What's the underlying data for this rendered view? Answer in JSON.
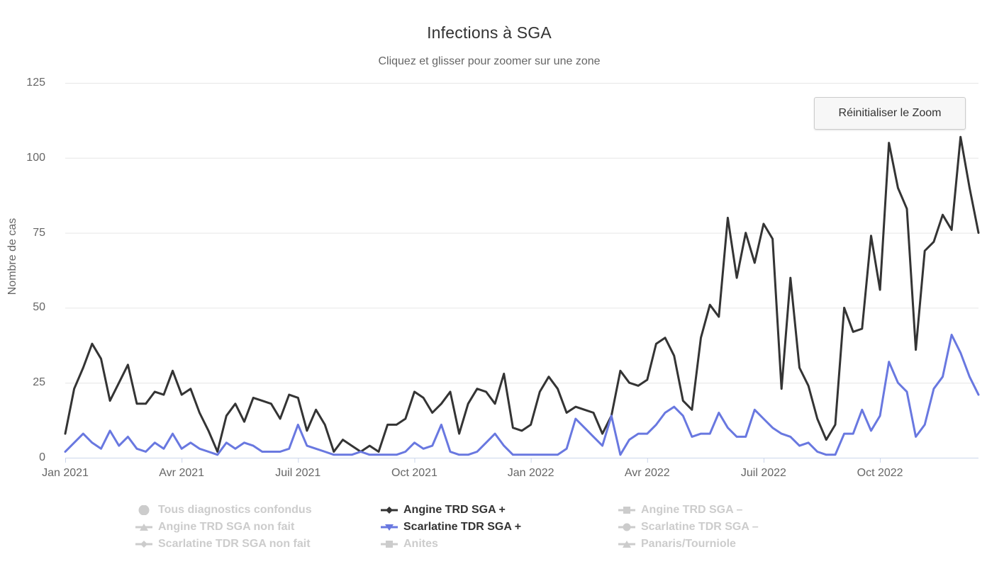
{
  "header": {
    "title": "Infections à SGA",
    "subtitle": "Cliquez et glisser pour zoomer sur une zone"
  },
  "reset_zoom_label": "Réinitialiser le Zoom",
  "chart_data": {
    "type": "line",
    "title": "Infections à SGA",
    "subtitle": "Cliquez et glisser pour zoomer sur une zone",
    "ylabel": "Nombre de cas",
    "xlabel": "",
    "ylim": [
      0,
      125
    ],
    "yticks": [
      0,
      25,
      50,
      75,
      100,
      125
    ],
    "grid": true,
    "legend_position": "bottom",
    "x_unit": "week",
    "x_range": "Jan 2021 – Déc 2022 (données hebdomadaires, 103 points)",
    "xticks": [
      {
        "index": 0,
        "label": "Jan 2021"
      },
      {
        "index": 13,
        "label": "Avr 2021"
      },
      {
        "index": 26,
        "label": "Juil 2021"
      },
      {
        "index": 39,
        "label": "Oct 2021"
      },
      {
        "index": 52,
        "label": "Jan 2022"
      },
      {
        "index": 65,
        "label": "Avr 2022"
      },
      {
        "index": 78,
        "label": "Juil 2022"
      },
      {
        "index": 91,
        "label": "Oct 2022"
      }
    ],
    "series": [
      {
        "name": "Angine TRD SGA +",
        "color": "#343434",
        "values": [
          8,
          23,
          30,
          38,
          33,
          19,
          25,
          31,
          18,
          18,
          22,
          21,
          29,
          21,
          23,
          15,
          9,
          2,
          14,
          18,
          12,
          20,
          19,
          18,
          13,
          21,
          20,
          9,
          16,
          11,
          2,
          6,
          4,
          2,
          4,
          2,
          11,
          11,
          13,
          22,
          20,
          15,
          18,
          22,
          8,
          18,
          23,
          22,
          18,
          28,
          10,
          9,
          11,
          22,
          27,
          23,
          15,
          17,
          16,
          15,
          8,
          14,
          29,
          25,
          24,
          26,
          38,
          40,
          34,
          19,
          16,
          40,
          51,
          47,
          80,
          60,
          75,
          65,
          78,
          73,
          23,
          60,
          30,
          24,
          13,
          6,
          11,
          50,
          42,
          43,
          74,
          56,
          105,
          90,
          83,
          36,
          69,
          72,
          81,
          76,
          107,
          90,
          75
        ]
      },
      {
        "name": "Scarlatine TDR SGA +",
        "color": "#6978e0",
        "values": [
          2,
          5,
          8,
          5,
          3,
          9,
          4,
          7,
          3,
          2,
          5,
          3,
          8,
          3,
          5,
          3,
          2,
          1,
          5,
          3,
          5,
          4,
          2,
          2,
          2,
          3,
          11,
          4,
          3,
          2,
          1,
          1,
          1,
          2,
          1,
          1,
          1,
          1,
          2,
          5,
          3,
          4,
          11,
          2,
          1,
          1,
          2,
          5,
          8,
          4,
          1,
          1,
          1,
          1,
          1,
          1,
          3,
          13,
          10,
          7,
          4,
          14,
          1,
          6,
          8,
          8,
          11,
          15,
          17,
          14,
          7,
          8,
          8,
          15,
          10,
          7,
          7,
          16,
          13,
          10,
          8,
          7,
          4,
          5,
          2,
          1,
          1,
          8,
          8,
          16,
          9,
          14,
          32,
          25,
          22,
          7,
          11,
          23,
          27,
          41,
          35,
          27,
          21
        ]
      }
    ]
  },
  "legend": {
    "disabled_color": "#cccccc",
    "enabled_text_color": "#333333",
    "columns": [
      [
        {
          "label": "Tous diagnostics confondus",
          "marker": "big-circle",
          "line": false,
          "enabled": false
        },
        {
          "label": "Angine TRD SGA non fait",
          "marker": "triangle-up",
          "line": true,
          "enabled": false
        },
        {
          "label": "Scarlatine TDR SGA non fait",
          "marker": "diamond",
          "line": true,
          "enabled": false
        }
      ],
      [
        {
          "label": "Angine TRD SGA +",
          "marker": "diamond",
          "line": true,
          "enabled": true,
          "color": "#343434"
        },
        {
          "label": "Scarlatine TDR SGA +",
          "marker": "triangle-down",
          "line": true,
          "enabled": true,
          "color": "#6978e0"
        },
        {
          "label": "Anites",
          "marker": "square",
          "line": true,
          "enabled": false
        }
      ],
      [
        {
          "label": "Angine TRD SGA –",
          "marker": "square",
          "line": true,
          "enabled": false
        },
        {
          "label": "Scarlatine TDR SGA –",
          "marker": "circle",
          "line": true,
          "enabled": false
        },
        {
          "label": "Panaris/Tourniole",
          "marker": "triangle-up",
          "line": true,
          "enabled": false
        }
      ]
    ]
  },
  "theme": {
    "grid_color": "#e6e6e6",
    "axis_line_color": "#ccd6eb",
    "tick_label_color": "#666666",
    "background": "#ffffff"
  }
}
